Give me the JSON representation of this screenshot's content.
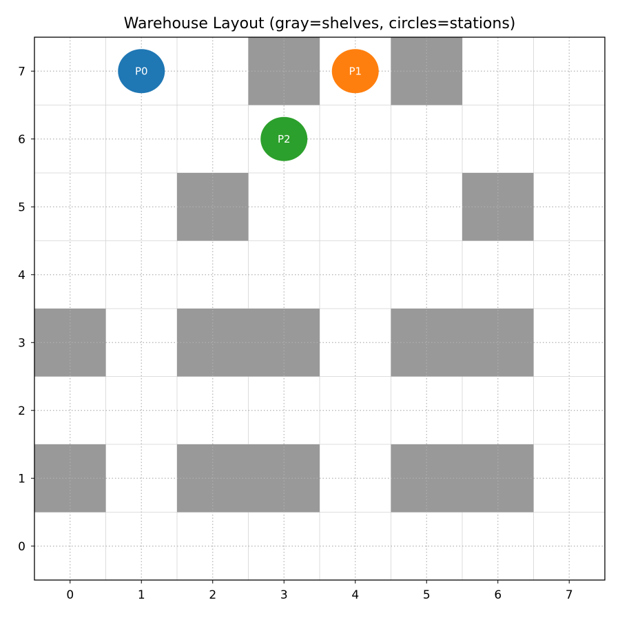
{
  "chart_data": {
    "type": "scatter",
    "title": "Warehouse Layout (gray=shelves, circles=stations)",
    "xlabel": "",
    "ylabel": "",
    "xlim": [
      -0.5,
      7.5
    ],
    "ylim": [
      -0.5,
      7.5
    ],
    "x_ticks": [
      "0",
      "1",
      "2",
      "3",
      "4",
      "5",
      "6",
      "7"
    ],
    "y_ticks": [
      "0",
      "1",
      "2",
      "3",
      "4",
      "5",
      "6",
      "7"
    ],
    "grid": true,
    "shelf_color": "#999999",
    "shelves": [
      {
        "x": 3,
        "y": 7
      },
      {
        "x": 5,
        "y": 7
      },
      {
        "x": 2,
        "y": 5
      },
      {
        "x": 6,
        "y": 5
      },
      {
        "x": 0,
        "y": 3
      },
      {
        "x": 2,
        "y": 3
      },
      {
        "x": 3,
        "y": 3
      },
      {
        "x": 5,
        "y": 3
      },
      {
        "x": 6,
        "y": 3
      },
      {
        "x": 0,
        "y": 1
      },
      {
        "x": 2,
        "y": 1
      },
      {
        "x": 3,
        "y": 1
      },
      {
        "x": 5,
        "y": 1
      },
      {
        "x": 6,
        "y": 1
      }
    ],
    "stations": [
      {
        "label": "P0",
        "x": 1,
        "y": 7,
        "color": "#1f77b4"
      },
      {
        "label": "P1",
        "x": 4,
        "y": 7,
        "color": "#ff7f0e"
      },
      {
        "label": "P2",
        "x": 3,
        "y": 6,
        "color": "#2ca02c"
      }
    ]
  }
}
